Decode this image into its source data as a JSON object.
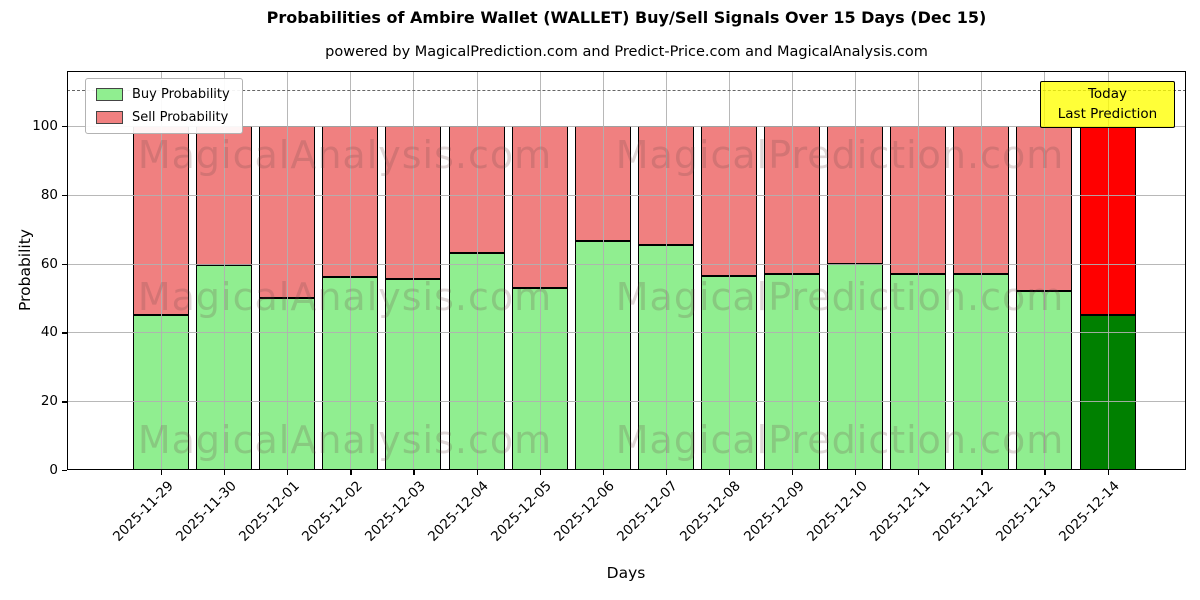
{
  "title": "Probabilities of Ambire Wallet (WALLET) Buy/Sell Signals Over 15 Days (Dec 15)",
  "subtitle": "powered by MagicalPrediction.com and Predict-Price.com and MagicalAnalysis.com",
  "legend": {
    "items": [
      {
        "label": "Buy Probability",
        "color": "#90EE90"
      },
      {
        "label": "Sell Probability",
        "color": "#F08080"
      }
    ]
  },
  "annotation": {
    "line1": "Today",
    "line2": "Last Prediction",
    "bg_color": "#FFFF00"
  },
  "watermark": {
    "left_text": "MagicalAnalysis.com",
    "right_text": "MagicalPrediction.com"
  },
  "chart_data": {
    "type": "bar",
    "stacked": true,
    "title": "Probabilities of Ambire Wallet (WALLET) Buy/Sell Signals Over 15 Days (Dec 15)",
    "xlabel": "Days",
    "ylabel": "Probability",
    "ylim": [
      0,
      116
    ],
    "yticks": [
      0,
      20,
      40,
      60,
      80,
      100
    ],
    "grid": true,
    "legend_position": "upper left",
    "dashed_line_y": 110.5,
    "categories": [
      "2025-11-29",
      "2025-11-30",
      "2025-12-01",
      "2025-12-02",
      "2025-12-03",
      "2025-12-04",
      "2025-12-05",
      "2025-12-06",
      "2025-12-07",
      "2025-12-08",
      "2025-12-09",
      "2025-12-10",
      "2025-12-11",
      "2025-12-12",
      "2025-12-13",
      "2025-12-14"
    ],
    "series": [
      {
        "name": "Buy Probability",
        "color": "#90EE90",
        "values": [
          45,
          59.5,
          50,
          56,
          55.5,
          63,
          53,
          66.5,
          65.5,
          56.5,
          57,
          60,
          57,
          57,
          52,
          45
        ]
      },
      {
        "name": "Sell Probability",
        "color": "#F08080",
        "values": [
          55,
          40.5,
          50,
          44,
          44.5,
          37,
          47,
          33.5,
          34.5,
          43.5,
          43,
          40,
          43,
          43,
          48,
          55
        ]
      }
    ],
    "highlight_last_bar": {
      "buy_color": "#008000",
      "sell_color": "#FF0000"
    },
    "bar_edge_color": "#000000"
  }
}
